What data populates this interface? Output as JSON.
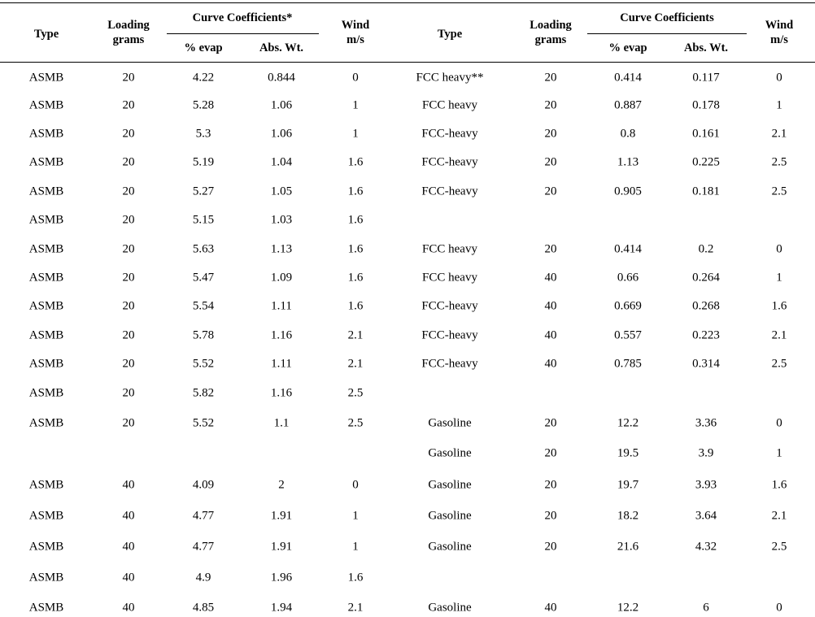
{
  "headers": {
    "left": {
      "type": "Type",
      "loading_1": "Loading",
      "loading_2": "grams",
      "curve": "Curve Coefficients*",
      "evap": "% evap",
      "abs": "Abs. Wt.",
      "wind_1": "Wind",
      "wind_2": "m/s"
    },
    "right": {
      "type": "Type",
      "loading_1": "Loading",
      "loading_2": "grams",
      "curve": "Curve Coefficients",
      "evap": "% evap",
      "abs": "Abs. Wt.",
      "wind_1": "Wind",
      "wind_2": "m/s"
    }
  },
  "rows": [
    {
      "left": [
        "ASMB",
        "20",
        "4.22",
        "0.844",
        "0"
      ],
      "right": [
        "FCC heavy**",
        "20",
        "0.414",
        "0.117",
        "0"
      ]
    },
    {
      "left": [
        "ASMB",
        "20",
        "5.28",
        "1.06",
        "1"
      ],
      "right": [
        "FCC heavy",
        "20",
        "0.887",
        "0.178",
        "1"
      ]
    },
    {
      "left": [
        "ASMB",
        "20",
        "5.3",
        "1.06",
        "1"
      ],
      "right": [
        "FCC-heavy",
        "20",
        "0.8",
        "0.161",
        "2.1"
      ]
    },
    {
      "left": [
        "ASMB",
        "20",
        "5.19",
        "1.04",
        "1.6"
      ],
      "right": [
        "FCC-heavy",
        "20",
        "1.13",
        "0.225",
        "2.5"
      ]
    },
    {
      "left": [
        "ASMB",
        "20",
        "5.27",
        "1.05",
        "1.6"
      ],
      "right": [
        "FCC-heavy",
        "20",
        "0.905",
        "0.181",
        "2.5"
      ]
    },
    {
      "left": [
        "ASMB",
        "20",
        "5.15",
        "1.03",
        "1.6"
      ],
      "right": [
        "",
        "",
        "",
        "",
        ""
      ]
    },
    {
      "left": [
        "ASMB",
        "20",
        "5.63",
        "1.13",
        "1.6"
      ],
      "right": [
        "FCC heavy",
        "20",
        "0.414",
        "0.2",
        "0"
      ]
    },
    {
      "left": [
        "ASMB",
        "20",
        "5.47",
        "1.09",
        "1.6"
      ],
      "right": [
        "FCC heavy",
        "40",
        "0.66",
        "0.264",
        "1"
      ]
    },
    {
      "left": [
        "ASMB",
        "20",
        "5.54",
        "1.11",
        "1.6"
      ],
      "right": [
        "FCC-heavy",
        "40",
        "0.669",
        "0.268",
        "1.6"
      ]
    },
    {
      "left": [
        "ASMB",
        "20",
        "5.78",
        "1.16",
        "2.1"
      ],
      "right": [
        "FCC-heavy",
        "40",
        "0.557",
        "0.223",
        "2.1"
      ]
    },
    {
      "left": [
        "ASMB",
        "20",
        "5.52",
        "1.11",
        "2.1"
      ],
      "right": [
        "FCC-heavy",
        "40",
        "0.785",
        "0.314",
        "2.5"
      ]
    },
    {
      "left": [
        "ASMB",
        "20",
        "5.82",
        "1.16",
        "2.5"
      ],
      "right": [
        "",
        "",
        "",
        "",
        ""
      ]
    },
    {
      "left": [
        "ASMB",
        "20",
        "5.52",
        "1.1",
        "2.5"
      ],
      "right": [
        "Gasoline",
        "20",
        "12.2",
        "3.36",
        "0"
      ]
    },
    {
      "left": [
        "",
        "",
        "",
        "",
        ""
      ],
      "right": [
        "Gasoline",
        "20",
        "19.5",
        "3.9",
        "1"
      ]
    },
    {
      "left": [
        "ASMB",
        "40",
        "4.09",
        "2",
        "0"
      ],
      "right": [
        "Gasoline",
        "20",
        "19.7",
        "3.93",
        "1.6"
      ]
    },
    {
      "left": [
        "ASMB",
        "40",
        "4.77",
        "1.91",
        "1"
      ],
      "right": [
        "Gasoline",
        "20",
        "18.2",
        "3.64",
        "2.1"
      ]
    },
    {
      "left": [
        "ASMB",
        "40",
        "4.77",
        "1.91",
        "1"
      ],
      "right": [
        "Gasoline",
        "20",
        "21.6",
        "4.32",
        "2.5"
      ]
    },
    {
      "left": [
        "ASMB",
        "40",
        "4.9",
        "1.96",
        "1.6"
      ],
      "right": [
        "",
        "",
        "",
        "",
        ""
      ]
    },
    {
      "left": [
        "ASMB",
        "40",
        "4.85",
        "1.94",
        "2.1"
      ],
      "right": [
        "Gasoline",
        "40",
        "12.2",
        "6",
        "0"
      ]
    }
  ]
}
